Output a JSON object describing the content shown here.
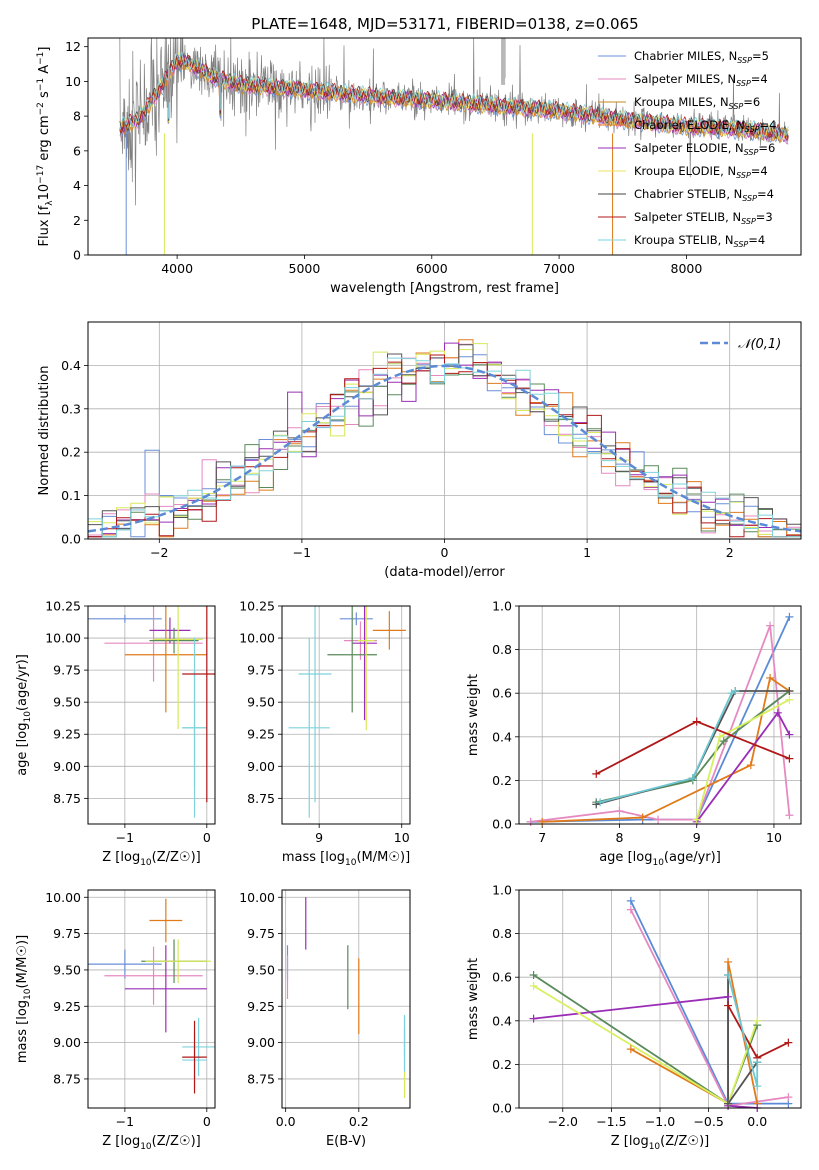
{
  "figure": {
    "title": "PLATE=1648, MJD=53171, FIBERID=0138, z=0.065"
  },
  "series_colors": [
    "#6a8fd8",
    "#e589c2",
    "#e07a1a",
    "#e07a1a",
    "#9a2db5",
    "#d8e85a",
    "#555555",
    "#b01818",
    "#7dd3dc"
  ],
  "chart_data": [
    {
      "id": "spectrum",
      "type": "line",
      "xlabel": "wavelength [Angstrom, rest frame]",
      "ylabel": "Flux [f",
      "ylabel_full": "Flux [f_λ 10^-17 erg cm^-2 s^-1 A^-1]",
      "xlim": [
        3300,
        8900
      ],
      "ylim": [
        0,
        12.5
      ],
      "xticks": [
        4000,
        5000,
        6000,
        7000,
        8000
      ],
      "yticks": [
        0,
        2,
        4,
        6,
        8,
        10,
        12
      ],
      "legend_position": "top-right",
      "grid": false,
      "legend": [
        "Chabrier MILES, N_SSP=5",
        "Salpeter MILES, N_SSP=4",
        "Kroupa MILES, N_SSP=6",
        "Chabrier ELODIE, N_SSP=4",
        "Salpeter ELODIE, N_SSP=6",
        "Kroupa ELODIE, N_SSP=4",
        "Chabrier STELIB, N_SSP=4",
        "Salpeter STELIB, N_SSP=3",
        "Kroupa STELIB, N_SSP=4"
      ],
      "legend_label_parts": [
        [
          "Chabrier MILES, N",
          "SSP",
          "=5"
        ],
        [
          "Salpeter MILES, N",
          "SSP",
          "=4"
        ],
        [
          "Kroupa MILES, N",
          "SSP",
          "=6"
        ],
        [
          "Chabrier ELODIE, N",
          "SSP",
          "=4"
        ],
        [
          "Salpeter ELODIE, N",
          "SSP",
          "=6"
        ],
        [
          "Kroupa ELODIE, N",
          "SSP",
          "=4"
        ],
        [
          "Chabrier STELIB, N",
          "SSP",
          "=4"
        ],
        [
          "Salpeter STELIB, N",
          "SSP",
          "=3"
        ],
        [
          "Kroupa STELIB, N",
          "SSP",
          "=4"
        ]
      ],
      "legend_colors": [
        "#6a8fd8",
        "#e589c2",
        "#c98a1a",
        "#e07a1a",
        "#9a2db5",
        "#f0e060",
        "#444444",
        "#b01818",
        "#7dd3dc"
      ],
      "continuum_model": {
        "x": [
          3550,
          3700,
          3850,
          4000,
          4100,
          4300,
          4500,
          4700,
          5000,
          5300,
          5600,
          6000,
          6500,
          7000,
          7500,
          8000,
          8500,
          8800
        ],
        "y": [
          7.3,
          7.8,
          9.4,
          11.2,
          11.0,
          10.2,
          9.8,
          9.7,
          9.5,
          9.3,
          9.1,
          8.9,
          8.6,
          8.3,
          7.8,
          7.4,
          7.2,
          6.9
        ]
      }
    },
    {
      "id": "residual_histogram",
      "type": "histogram",
      "xlabel": "(data-model)/error",
      "ylabel": "Normed distribution",
      "xlim": [
        -2.5,
        2.5
      ],
      "ylim": [
        0,
        0.5
      ],
      "xticks": [
        -2,
        -1,
        0,
        1,
        2
      ],
      "yticks": [
        0.0,
        0.1,
        0.2,
        0.3,
        0.4
      ],
      "grid": true,
      "legend": "𝒩(0,1)",
      "legend_position": "top-right",
      "bin_width": 0.1,
      "gaussian": {
        "mean": 0,
        "sigma": 1
      }
    },
    {
      "id": "age_vs_Z",
      "type": "scatter",
      "xlabel": "Z [log",
      "xlabel_full": "Z [log10(Z/Z☉)]",
      "ylabel": "age  [log",
      "ylabel_full": "age  [log10(age/yr)]",
      "xlim": [
        -1.45,
        0.1
      ],
      "ylim": [
        8.55,
        10.25
      ],
      "xticks": [
        -1,
        0
      ],
      "yticks": [
        8.75,
        9.0,
        9.25,
        9.5,
        9.75,
        10.0,
        10.25
      ],
      "grid": true,
      "points": [
        {
          "x": -1.0,
          "y": 10.15,
          "xerr": 0.45,
          "yerr": 0.03
        },
        {
          "x": -0.65,
          "y": 9.96,
          "xerr": 0.6,
          "yerr": 0.3
        },
        {
          "x": -0.45,
          "y": 10.06,
          "xerr": 0.25,
          "yerr": 0.1
        },
        {
          "x": -0.4,
          "y": 9.98,
          "xerr": 0.3,
          "yerr": 0.1
        },
        {
          "x": -0.5,
          "y": 9.87,
          "xerr": 0.5,
          "yerr": 0.45
        },
        {
          "x": -0.35,
          "y": 9.99,
          "xerr": 0.3,
          "yerr": 0.7
        },
        {
          "x": -0.15,
          "y": 9.3,
          "xerr": 0.15,
          "yerr": 0.7
        },
        {
          "x": -0.15,
          "y": 9.3,
          "xerr": 0.15,
          "yerr": 0.45
        },
        {
          "x": 0.0,
          "y": 9.72,
          "xerr": 0.3,
          "yerr": 1.0
        }
      ]
    },
    {
      "id": "age_vs_mass",
      "type": "scatter",
      "xlabel": "mass [log",
      "xlabel_full": "mass [log10(M/M☉)]",
      "xlim": [
        8.55,
        10.1
      ],
      "ylim": [
        8.55,
        10.25
      ],
      "xticks": [
        9,
        10
      ],
      "yticks": [
        8.75,
        9.0,
        9.25,
        9.5,
        9.75,
        10.0,
        10.25
      ],
      "grid": true,
      "points": [
        {
          "x": 9.45,
          "y": 10.15,
          "xerr": 0.2,
          "yerr": 0.05
        },
        {
          "x": 9.5,
          "y": 9.98,
          "xerr": 0.2,
          "yerr": 0.15
        },
        {
          "x": 9.55,
          "y": 9.96,
          "xerr": 0.15,
          "yerr": 0.6
        },
        {
          "x": 9.4,
          "y": 9.87,
          "xerr": 0.3,
          "yerr": 0.45
        },
        {
          "x": 9.85,
          "y": 10.06,
          "xerr": 0.2,
          "yerr": 0.15
        },
        {
          "x": 9.57,
          "y": 9.98,
          "xerr": 0.1,
          "yerr": 0.7
        },
        {
          "x": 8.95,
          "y": 9.72,
          "xerr": 0.2,
          "yerr": 1.0
        },
        {
          "x": 8.88,
          "y": 9.3,
          "xerr": 0.25,
          "yerr": 0.7
        }
      ]
    },
    {
      "id": "mass_weight_vs_age",
      "type": "line",
      "xlabel": "age  [log",
      "xlabel_full": "age  [log10(age/yr)]",
      "ylabel": "mass weight",
      "xlim": [
        6.7,
        10.35
      ],
      "ylim": [
        0,
        1.0
      ],
      "xticks": [
        7,
        8,
        9,
        10
      ],
      "yticks": [
        0.0,
        0.2,
        0.4,
        0.6,
        0.8,
        1.0
      ],
      "grid": true,
      "series": [
        {
          "x": [
            6.85,
            8.3,
            9.0,
            10.2
          ],
          "y": [
            0.01,
            0.02,
            0.02,
            0.95
          ]
        },
        {
          "x": [
            6.85,
            8.0,
            8.5,
            9.0,
            9.95,
            10.2
          ],
          "y": [
            0.01,
            0.06,
            0.02,
            0.02,
            0.91,
            0.04
          ]
        },
        {
          "x": [
            7.0,
            8.3,
            9.7,
            9.95,
            10.2
          ],
          "y": [
            0.01,
            0.03,
            0.27,
            0.67,
            0.61
          ]
        },
        {
          "x": [
            7.7,
            8.95,
            9.35,
            10.2
          ],
          "y": [
            0.1,
            0.2,
            0.38,
            0.61
          ]
        },
        {
          "x": [
            9.0,
            10.05,
            10.2
          ],
          "y": [
            0.01,
            0.51,
            0.41
          ]
        },
        {
          "x": [
            9.0,
            9.3,
            10.2
          ],
          "y": [
            0.02,
            0.4,
            0.57
          ]
        },
        {
          "x": [
            7.7,
            8.95,
            9.5,
            10.2
          ],
          "y": [
            0.09,
            0.21,
            0.61,
            0.61
          ]
        },
        {
          "x": [
            7.7,
            9.0,
            10.2
          ],
          "y": [
            0.23,
            0.47,
            0.3
          ]
        },
        {
          "x": [
            7.75,
            8.95,
            9.45,
            9.5
          ],
          "y": [
            0.1,
            0.21,
            0.6,
            0.61
          ]
        }
      ]
    },
    {
      "id": "mass_vs_Z",
      "type": "scatter",
      "xlabel": "Z [log",
      "xlabel_full": "Z [log10(Z/Z☉)]",
      "ylabel": "mass [log",
      "ylabel_full": "mass [log10(M/M☉)]",
      "xlim": [
        -1.45,
        0.1
      ],
      "ylim": [
        8.55,
        10.05
      ],
      "xticks": [
        -1,
        0
      ],
      "yticks": [
        8.75,
        9.0,
        9.25,
        9.5,
        9.75,
        10.0
      ],
      "grid": true,
      "points": [
        {
          "x": -1.0,
          "y": 9.54,
          "xerr": 0.45,
          "yerr": 0.1
        },
        {
          "x": -0.65,
          "y": 9.46,
          "xerr": 0.6,
          "yerr": 0.2
        },
        {
          "x": -0.5,
          "y": 9.37,
          "xerr": 0.5,
          "yerr": 0.3
        },
        {
          "x": -0.4,
          "y": 9.56,
          "xerr": 0.4,
          "yerr": 0.15
        },
        {
          "x": -0.5,
          "y": 9.84,
          "xerr": 0.2,
          "yerr": 0.15
        },
        {
          "x": -0.35,
          "y": 9.56,
          "xerr": 0.4,
          "yerr": 0.15
        },
        {
          "x": -0.15,
          "y": 8.88,
          "xerr": 0.15,
          "yerr": 0.2
        },
        {
          "x": -0.1,
          "y": 8.97,
          "xerr": 0.2,
          "yerr": 0.2
        },
        {
          "x": -0.15,
          "y": 8.9,
          "xerr": 0.15,
          "yerr": 0.25
        }
      ]
    },
    {
      "id": "mass_vs_ebv",
      "type": "scatter",
      "xlabel": "E(B-V)",
      "xlim": [
        -0.01,
        0.34
      ],
      "ylim": [
        8.55,
        10.05
      ],
      "xticks": [
        0.0,
        0.2
      ],
      "yticks": [
        8.75,
        9.0,
        9.25,
        9.5,
        9.75,
        10.0
      ],
      "grid": true,
      "points": [
        {
          "x": 0.005,
          "y": 9.55,
          "xerr": 0.0,
          "yerr": 0.12
        },
        {
          "x": 0.005,
          "y": 9.45,
          "xerr": 0.0,
          "yerr": 0.15
        },
        {
          "x": 0.055,
          "y": 9.82,
          "xerr": 0.0,
          "yerr": 0.18
        },
        {
          "x": 0.17,
          "y": 9.45,
          "xerr": 0.0,
          "yerr": 0.22
        },
        {
          "x": 0.2,
          "y": 9.32,
          "xerr": 0.0,
          "yerr": 0.26
        },
        {
          "x": 0.325,
          "y": 8.9,
          "xerr": 0.0,
          "yerr": 0.28
        },
        {
          "x": 0.325,
          "y": 9.05,
          "xerr": 0.0,
          "yerr": 0.14
        },
        {
          "x": 0.325,
          "y": 8.95,
          "xerr": 0.0,
          "yerr": 0.15
        }
      ]
    },
    {
      "id": "mass_weight_vs_Z",
      "type": "line",
      "xlabel": "Z [log",
      "xlabel_full": "Z [log10(Z/Z☉)]",
      "ylabel": "mass weight",
      "xlim": [
        -2.45,
        0.45
      ],
      "ylim": [
        0,
        1.0
      ],
      "xticks": [
        -2.0,
        -1.5,
        -1.0,
        -0.5,
        0.0
      ],
      "yticks": [
        0.0,
        0.2,
        0.4,
        0.6,
        0.8,
        1.0
      ],
      "grid": true,
      "series": [
        {
          "x": [
            -1.3,
            -0.3,
            0.32
          ],
          "y": [
            0.95,
            0.02,
            0.02
          ]
        },
        {
          "x": [
            -1.3,
            -0.3,
            0.32
          ],
          "y": [
            0.91,
            0.01,
            0.05
          ]
        },
        {
          "x": [
            -1.3,
            -0.3,
            -0.3,
            0.0
          ],
          "y": [
            0.27,
            0.02,
            0.67,
            0.02
          ]
        },
        {
          "x": [
            -2.3,
            -0.3,
            0.0
          ],
          "y": [
            0.61,
            0.02,
            0.38
          ]
        },
        {
          "x": [
            -2.3,
            -0.3,
            -0.3,
            0.0
          ],
          "y": [
            0.41,
            0.51,
            0.01,
            0.0
          ]
        },
        {
          "x": [
            -2.3,
            -0.3,
            0.0
          ],
          "y": [
            0.56,
            0.02,
            0.4
          ]
        },
        {
          "x": [
            -0.3,
            -0.3,
            0.0
          ],
          "y": [
            0.61,
            0.02,
            0.21
          ]
        },
        {
          "x": [
            -0.3,
            0.0,
            0.32
          ],
          "y": [
            0.47,
            0.23,
            0.3
          ]
        },
        {
          "x": [
            -0.3,
            0.0,
            0.0
          ],
          "y": [
            0.61,
            0.1,
            0.21
          ]
        }
      ]
    }
  ]
}
